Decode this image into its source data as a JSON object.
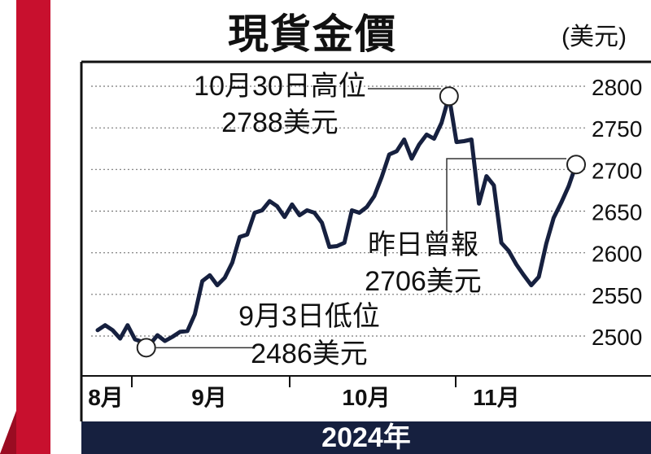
{
  "header": {
    "title": "現貨金價",
    "unit": "(美元)"
  },
  "footer": {
    "year": "2024年"
  },
  "colors": {
    "line": "#16203f",
    "accent": "#c8102e",
    "grid": "#777777",
    "year_bar": "#16203f"
  },
  "chart_data": {
    "type": "line",
    "title": "現貨金價",
    "ylabel": "(美元)",
    "xlabel": "2024年",
    "ylim": [
      2465,
      2820
    ],
    "yticks": [
      2500,
      2550,
      2600,
      2650,
      2700,
      2750,
      2800
    ],
    "xticks": [
      {
        "label": "8月",
        "t": 0
      },
      {
        "label": "9月",
        "t": 13.5
      },
      {
        "label": "10月",
        "t": 31.5
      },
      {
        "label": "11月",
        "t": 48
      }
    ],
    "grid": true,
    "series": [
      {
        "values": [
          [
            0,
            2507
          ],
          [
            1,
            2513
          ],
          [
            2,
            2507
          ],
          [
            3,
            2497
          ],
          [
            4,
            2513
          ],
          [
            5,
            2496
          ],
          [
            6,
            2493
          ],
          [
            6.5,
            2486
          ],
          [
            7,
            2490
          ],
          [
            8,
            2501
          ],
          [
            9,
            2494
          ],
          [
            10,
            2499
          ],
          [
            11,
            2505
          ],
          [
            12,
            2506
          ],
          [
            13,
            2526
          ],
          [
            14,
            2566
          ],
          [
            15,
            2573
          ],
          [
            16,
            2561
          ],
          [
            17,
            2570
          ],
          [
            18,
            2588
          ],
          [
            19,
            2619
          ],
          [
            20,
            2622
          ],
          [
            21,
            2648
          ],
          [
            22,
            2651
          ],
          [
            23,
            2662
          ],
          [
            24,
            2656
          ],
          [
            25,
            2643
          ],
          [
            26,
            2658
          ],
          [
            27,
            2645
          ],
          [
            28,
            2651
          ],
          [
            29,
            2648
          ],
          [
            30,
            2636
          ],
          [
            31,
            2607
          ],
          [
            32,
            2608
          ],
          [
            33,
            2612
          ],
          [
            34,
            2651
          ],
          [
            35,
            2648
          ],
          [
            36,
            2655
          ],
          [
            37,
            2668
          ],
          [
            38,
            2691
          ],
          [
            39,
            2718
          ],
          [
            40,
            2722
          ],
          [
            41,
            2736
          ],
          [
            42,
            2713
          ],
          [
            43,
            2730
          ],
          [
            44,
            2742
          ],
          [
            45,
            2737
          ],
          [
            46,
            2756
          ],
          [
            47,
            2788
          ],
          [
            48,
            2733
          ],
          [
            49,
            2734
          ],
          [
            50,
            2736
          ],
          [
            51,
            2659
          ],
          [
            52,
            2692
          ],
          [
            53,
            2681
          ],
          [
            54,
            2612
          ],
          [
            55,
            2602
          ],
          [
            56,
            2586
          ],
          [
            57,
            2573
          ],
          [
            58,
            2561
          ],
          [
            59,
            2571
          ],
          [
            60,
            2611
          ],
          [
            61,
            2642
          ],
          [
            62,
            2660
          ],
          [
            63,
            2680
          ],
          [
            64,
            2706
          ]
        ]
      }
    ],
    "annotations": [
      {
        "id": "high",
        "line1": "10月30日高位",
        "line2": "2788美元",
        "t": 47,
        "value": 2788
      },
      {
        "id": "low",
        "line1": "9月3日低位",
        "line2": "2486美元",
        "t": 6.5,
        "value": 2486
      },
      {
        "id": "last",
        "line1": "昨日曾報",
        "line2": "2706美元",
        "t": 64,
        "value": 2706
      }
    ]
  }
}
